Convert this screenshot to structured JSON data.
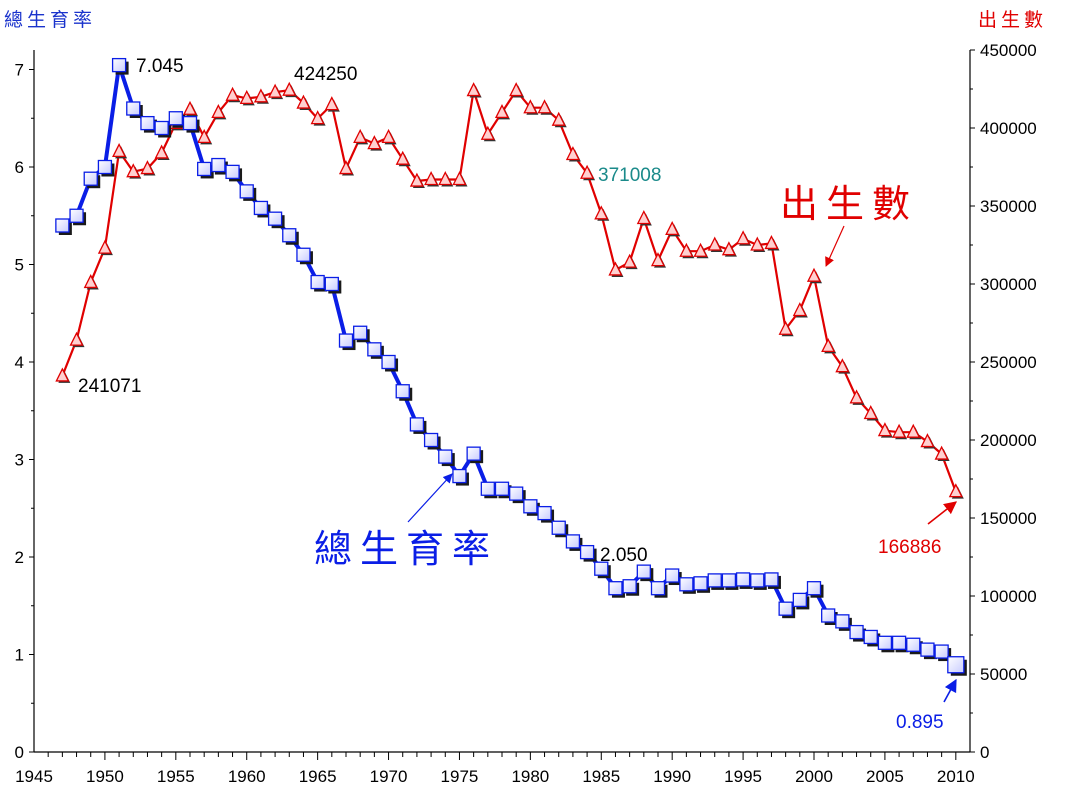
{
  "chart_data": {
    "type": "line",
    "left_axis_title": "總生育率",
    "right_axis_title": "出生數",
    "ylim_left": [
      0,
      7.2
    ],
    "ylim_right": [
      0,
      450000
    ],
    "xlim": [
      1945,
      2011
    ],
    "x_ticks": [
      "1945",
      "1950",
      "1955",
      "1960",
      "1965",
      "1970",
      "1975",
      "1980",
      "1985",
      "1990",
      "1995",
      "2000",
      "2005",
      "2010"
    ],
    "y_left_ticks": [
      "0",
      "1",
      "2",
      "3",
      "4",
      "5",
      "6",
      "7"
    ],
    "y_right_ticks": [
      "0",
      "50000",
      "100000",
      "150000",
      "200000",
      "250000",
      "300000",
      "350000",
      "400000",
      "450000"
    ],
    "colors": {
      "tfr": "#0a1ee6",
      "births": "#e00000",
      "teal": "#1a8a8a"
    },
    "series": [
      {
        "name": "總生育率",
        "axis": "left",
        "x": [
          1947,
          1948,
          1949,
          1950,
          1951,
          1952,
          1953,
          1954,
          1955,
          1956,
          1957,
          1958,
          1959,
          1960,
          1961,
          1962,
          1963,
          1964,
          1965,
          1966,
          1967,
          1968,
          1969,
          1970,
          1971,
          1972,
          1973,
          1974,
          1975,
          1976,
          1977,
          1978,
          1979,
          1980,
          1981,
          1982,
          1983,
          1984,
          1985,
          1986,
          1987,
          1988,
          1989,
          1990,
          1991,
          1992,
          1993,
          1994,
          1995,
          1996,
          1997,
          1998,
          1999,
          2000,
          2001,
          2002,
          2003,
          2004,
          2005,
          2006,
          2007,
          2008,
          2009,
          2010
        ],
        "values": [
          5.4,
          5.5,
          5.88,
          6.0,
          7.045,
          6.6,
          6.45,
          6.4,
          6.5,
          6.45,
          5.98,
          6.02,
          5.95,
          5.75,
          5.58,
          5.47,
          5.3,
          5.1,
          4.82,
          4.8,
          4.22,
          4.3,
          4.13,
          4.0,
          3.7,
          3.36,
          3.2,
          3.03,
          2.83,
          3.06,
          2.7,
          2.7,
          2.65,
          2.52,
          2.45,
          2.3,
          2.16,
          2.05,
          1.88,
          1.68,
          1.7,
          1.85,
          1.68,
          1.81,
          1.72,
          1.73,
          1.76,
          1.76,
          1.77,
          1.76,
          1.77,
          1.47,
          1.56,
          1.68,
          1.4,
          1.34,
          1.23,
          1.18,
          1.12,
          1.12,
          1.1,
          1.05,
          1.03,
          0.895
        ]
      },
      {
        "name": "出生數",
        "axis": "right",
        "x": [
          1947,
          1948,
          1949,
          1950,
          1951,
          1952,
          1953,
          1954,
          1955,
          1956,
          1957,
          1958,
          1959,
          1960,
          1961,
          1962,
          1963,
          1964,
          1965,
          1966,
          1967,
          1968,
          1969,
          1970,
          1971,
          1972,
          1973,
          1974,
          1975,
          1976,
          1977,
          1978,
          1979,
          1980,
          1981,
          1982,
          1983,
          1984,
          1985,
          1986,
          1987,
          1988,
          1989,
          1990,
          1991,
          1992,
          1993,
          1994,
          1995,
          1996,
          1997,
          1998,
          1999,
          2000,
          2001,
          2002,
          2003,
          2004,
          2005,
          2006,
          2007,
          2008,
          2009,
          2010
        ],
        "values": [
          241071,
          264000,
          301000,
          323000,
          385000,
          372000,
          374000,
          384000,
          403000,
          412000,
          394000,
          410000,
          421000,
          419000,
          420000,
          423000,
          424250,
          416000,
          406000,
          415000,
          374000,
          394000,
          390000,
          394000,
          380000,
          366000,
          367000,
          367000,
          367000,
          424000,
          396000,
          410000,
          424000,
          413000,
          413000,
          405000,
          383000,
          371008,
          345000,
          309000,
          314000,
          342000,
          315000,
          335000,
          321000,
          321000,
          325000,
          322000,
          329000,
          325000,
          326000,
          271000,
          283000,
          305000,
          260000,
          247000,
          227000,
          217000,
          206000,
          205000,
          205000,
          199000,
          191000,
          166886
        ]
      }
    ],
    "annotations": {
      "tfr_max": "7.045",
      "tfr_mid": "2.050",
      "tfr_last": "0.895",
      "births_first": "241071",
      "births_max": "424250",
      "births_mid": "371008",
      "births_last": "166886"
    },
    "series_labels": {
      "tfr": "總生育率",
      "births": "出生數"
    }
  }
}
